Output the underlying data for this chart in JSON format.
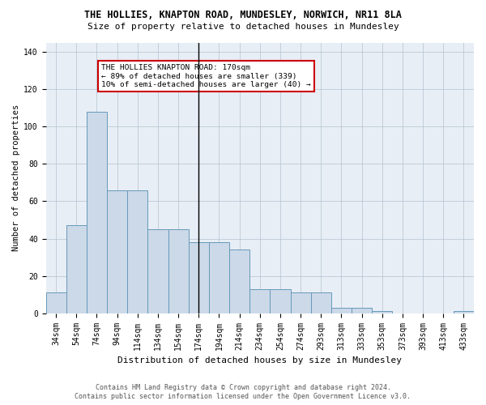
{
  "title": "THE HOLLIES, KNAPTON ROAD, MUNDESLEY, NORWICH, NR11 8LA",
  "subtitle": "Size of property relative to detached houses in Mundesley",
  "xlabel": "Distribution of detached houses by size in Mundesley",
  "ylabel": "Number of detached properties",
  "bar_color": "#ccd9e8",
  "bar_edge_color": "#6699bb",
  "bg_color": "#e8eef5",
  "categories": [
    "34sqm",
    "54sqm",
    "74sqm",
    "94sqm",
    "114sqm",
    "134sqm",
    "154sqm",
    "174sqm",
    "194sqm",
    "214sqm",
    "234sqm",
    "254sqm",
    "274sqm",
    "293sqm",
    "313sqm",
    "333sqm",
    "353sqm",
    "373sqm",
    "393sqm",
    "413sqm",
    "433sqm"
  ],
  "values": [
    11,
    47,
    108,
    66,
    66,
    45,
    45,
    38,
    38,
    34,
    13,
    13,
    11,
    11,
    3,
    3,
    1,
    0,
    0,
    0,
    1
  ],
  "ylim": [
    0,
    145
  ],
  "yticks": [
    0,
    20,
    40,
    60,
    80,
    100,
    120,
    140
  ],
  "vline_x": 7,
  "annotation_title": "THE HOLLIES KNAPTON ROAD: 170sqm",
  "annotation_line1": "← 89% of detached houses are smaller (339)",
  "annotation_line2": "10% of semi-detached houses are larger (40) →",
  "footer1": "Contains HM Land Registry data © Crown copyright and database right 2024.",
  "footer2": "Contains public sector information licensed under the Open Government Licence v3.0.",
  "title_fontsize": 8.5,
  "subtitle_fontsize": 8.0,
  "xlabel_fontsize": 8.0,
  "ylabel_fontsize": 7.5,
  "tick_fontsize": 7.0,
  "annot_fontsize": 6.8,
  "footer_fontsize": 6.0
}
